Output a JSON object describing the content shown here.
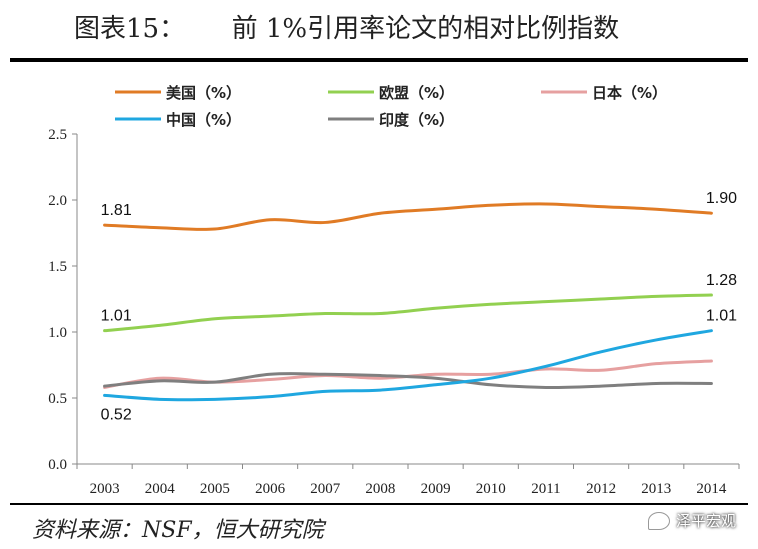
{
  "title": {
    "prefix": "图表15：",
    "main": "前 1%引用率论文的相对比例指数"
  },
  "source": "资料来源：NSF，恒大研究院",
  "watermark": "泽平宏观",
  "chart_data": {
    "type": "line",
    "categories": [
      "2003",
      "2004",
      "2005",
      "2006",
      "2007",
      "2008",
      "2009",
      "2010",
      "2011",
      "2012",
      "2013",
      "2014"
    ],
    "ylim": [
      0,
      2.5
    ],
    "yticks": [
      "0.0",
      "0.5",
      "1.0",
      "1.5",
      "2.0",
      "2.5"
    ],
    "grid": false,
    "legend_position": "top",
    "series": [
      {
        "name": "美国（%）",
        "color": "#E07B25",
        "values": [
          1.81,
          1.79,
          1.78,
          1.85,
          1.83,
          1.9,
          1.93,
          1.96,
          1.97,
          1.95,
          1.93,
          1.9
        ]
      },
      {
        "name": "欧盟（%）",
        "color": "#92D050",
        "values": [
          1.01,
          1.05,
          1.1,
          1.12,
          1.14,
          1.14,
          1.18,
          1.21,
          1.23,
          1.25,
          1.27,
          1.28
        ]
      },
      {
        "name": "日本（%）",
        "color": "#E6A0A0",
        "values": [
          0.58,
          0.65,
          0.62,
          0.64,
          0.67,
          0.65,
          0.68,
          0.68,
          0.72,
          0.71,
          0.76,
          0.78
        ]
      },
      {
        "name": "中国（%）",
        "color": "#1FA7E0",
        "values": [
          0.52,
          0.49,
          0.49,
          0.51,
          0.55,
          0.56,
          0.6,
          0.65,
          0.74,
          0.85,
          0.94,
          1.01
        ]
      },
      {
        "name": "印度（%）",
        "color": "#7F7F7F",
        "values": [
          0.59,
          0.63,
          0.62,
          0.68,
          0.68,
          0.67,
          0.65,
          0.6,
          0.58,
          0.59,
          0.61,
          0.61
        ]
      }
    ],
    "data_labels": [
      {
        "series": 0,
        "index": 0,
        "text": "1.81",
        "pos": "above"
      },
      {
        "series": 0,
        "index": 11,
        "text": "1.90",
        "pos": "above"
      },
      {
        "series": 1,
        "index": 0,
        "text": "1.01",
        "pos": "above"
      },
      {
        "series": 1,
        "index": 11,
        "text": "1.28",
        "pos": "above"
      },
      {
        "series": 3,
        "index": 0,
        "text": "0.52",
        "pos": "below"
      },
      {
        "series": 3,
        "index": 11,
        "text": "1.01",
        "pos": "above"
      }
    ]
  }
}
